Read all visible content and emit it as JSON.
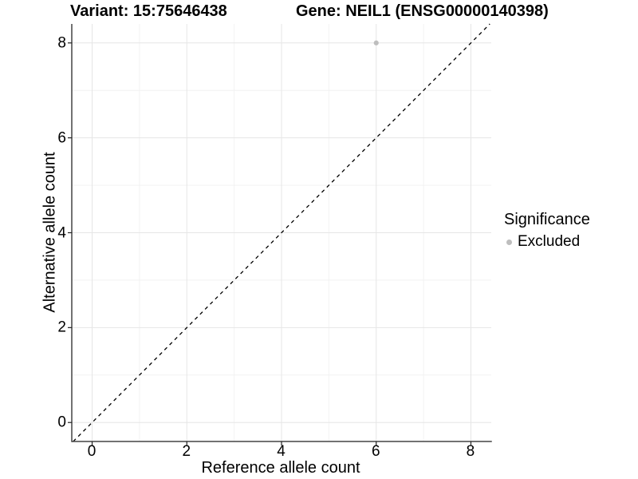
{
  "titles": {
    "variant": "Variant: 15:75646438",
    "gene": "Gene: NEIL1 (ENSG00000140398)"
  },
  "axes": {
    "x": {
      "label": "Reference allele count",
      "ticks": [
        0,
        2,
        4,
        6,
        8
      ],
      "minor_ticks": [
        1,
        3,
        5,
        7
      ]
    },
    "y": {
      "label": "Alternative allele count",
      "ticks": [
        0,
        2,
        4,
        6,
        8
      ],
      "minor_ticks": [
        1,
        3,
        5,
        7
      ]
    }
  },
  "legend": {
    "title": "Significance",
    "items": [
      {
        "label": "Excluded",
        "color": "#bebebe"
      }
    ]
  },
  "colors": {
    "point": "#bebebe",
    "grid_major": "#e6e6e6",
    "grid_minor": "#f2f2f2",
    "axis_line": "#444444",
    "tick_mark": "#222222",
    "reference_line": "#000000",
    "text": "#000000"
  },
  "chart_data": {
    "type": "scatter",
    "titles": [
      "Variant: 15:75646438",
      "Gene: NEIL1 (ENSG00000140398)"
    ],
    "xlabel": "Reference allele count",
    "ylabel": "Alternative allele count",
    "xlim": [
      -0.43,
      8.43
    ],
    "ylim": [
      -0.4,
      8.4
    ],
    "x_ticks": [
      0,
      2,
      4,
      6,
      8
    ],
    "y_ticks": [
      0,
      2,
      4,
      6,
      8
    ],
    "grid": true,
    "legend_position": "right",
    "series": [
      {
        "name": "Excluded",
        "color": "#bebebe",
        "points": [
          [
            6,
            8
          ]
        ]
      }
    ],
    "reference_line": {
      "type": "identity",
      "equation": "y = x",
      "style": "dashed",
      "color": "#000000"
    }
  }
}
